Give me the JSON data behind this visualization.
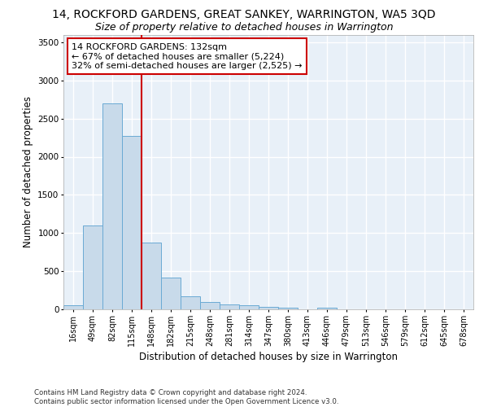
{
  "title": "14, ROCKFORD GARDENS, GREAT SANKEY, WARRINGTON, WA5 3QD",
  "subtitle": "Size of property relative to detached houses in Warrington",
  "xlabel": "Distribution of detached houses by size in Warrington",
  "ylabel": "Number of detached properties",
  "footer_line1": "Contains HM Land Registry data © Crown copyright and database right 2024.",
  "footer_line2": "Contains public sector information licensed under the Open Government Licence v3.0.",
  "categories": [
    "16sqm",
    "49sqm",
    "82sqm",
    "115sqm",
    "148sqm",
    "182sqm",
    "215sqm",
    "248sqm",
    "281sqm",
    "314sqm",
    "347sqm",
    "380sqm",
    "413sqm",
    "446sqm",
    "479sqm",
    "513sqm",
    "546sqm",
    "579sqm",
    "612sqm",
    "645sqm",
    "678sqm"
  ],
  "values": [
    50,
    1100,
    2700,
    2270,
    870,
    415,
    170,
    95,
    60,
    50,
    35,
    25,
    5,
    20,
    0,
    0,
    0,
    0,
    0,
    0,
    0
  ],
  "bar_color": "#c8daea",
  "bar_edge_color": "#6aaad4",
  "bar_edge_width": 0.7,
  "vline_color": "#cc0000",
  "vline_x": 3.5,
  "annotation_text": "14 ROCKFORD GARDENS: 132sqm\n← 67% of detached houses are smaller (5,224)\n32% of semi-detached houses are larger (2,525) →",
  "annotation_box_facecolor": "#ffffff",
  "annotation_box_edgecolor": "#cc0000",
  "ylim": [
    0,
    3600
  ],
  "yticks": [
    0,
    500,
    1000,
    1500,
    2000,
    2500,
    3000,
    3500
  ],
  "axes_bg_color": "#e8f0f8",
  "fig_bg_color": "#ffffff",
  "grid_color": "#ffffff",
  "title_fontsize": 10,
  "subtitle_fontsize": 9,
  "xlabel_fontsize": 8.5,
  "ylabel_fontsize": 8.5,
  "tick_fontsize": 7,
  "annotation_fontsize": 8,
  "footer_fontsize": 6.2
}
